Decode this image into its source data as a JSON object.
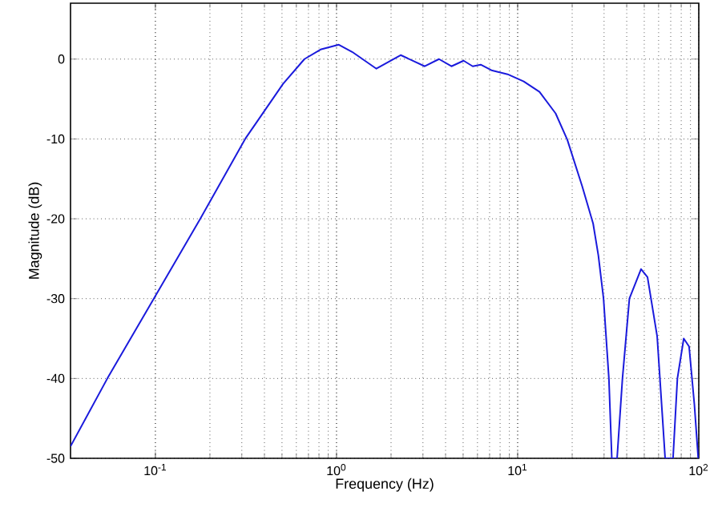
{
  "chart_data": {
    "type": "line",
    "xlabel": "Frequency (Hz)",
    "ylabel": "Magnitude (dB)",
    "log": "x",
    "grid": true,
    "xlim": [
      0.034,
      100
    ],
    "ylim": [
      -50,
      7
    ],
    "xticks": [
      {
        "value": 0.1,
        "label": "10$^{-1}$"
      },
      {
        "value": 1,
        "label": "10$^{0}$"
      },
      {
        "value": 10,
        "label": "10$^{1}$"
      },
      {
        "value": 100,
        "label": "10$^{2}$"
      }
    ],
    "yticks": [
      -50,
      -40,
      -30,
      -20,
      -10,
      0
    ],
    "x": [
      0.034,
      0.0543,
      0.098,
      0.177,
      0.313,
      0.507,
      0.665,
      0.816,
      1.03,
      1.22,
      1.66,
      2.26,
      3.07,
      3.68,
      4.31,
      5.03,
      5.65,
      6.25,
      7.17,
      8.8,
      10.8,
      13.2,
      16.2,
      18.8,
      22.7,
      26.1,
      27.9,
      29.8,
      31.9,
      33.1,
      35.4,
      37.9,
      41.4,
      48.0,
      52.1,
      58.9,
      63.0,
      65.2,
      72.1,
      76.2,
      82.6,
      88.4,
      94.6,
      99.3
    ],
    "series": [
      {
        "color": "#1a1adc",
        "values": [
          -48.5,
          -40,
          -30,
          -20,
          -10,
          -3.1,
          0,
          1.2,
          1.8,
          0.9,
          -1.2,
          0.5,
          -0.9,
          0,
          -0.9,
          -0.2,
          -0.9,
          -0.7,
          -1.4,
          -1.9,
          -2.8,
          -4.1,
          -6.8,
          -10.1,
          -15.9,
          -20.6,
          -24.6,
          -30,
          -40,
          -50,
          -50,
          -40,
          -30,
          -26.3,
          -27.3,
          -34.7,
          -44.8,
          -50,
          -50,
          -40,
          -35,
          -36,
          -43.3,
          -50
        ]
      }
    ]
  }
}
